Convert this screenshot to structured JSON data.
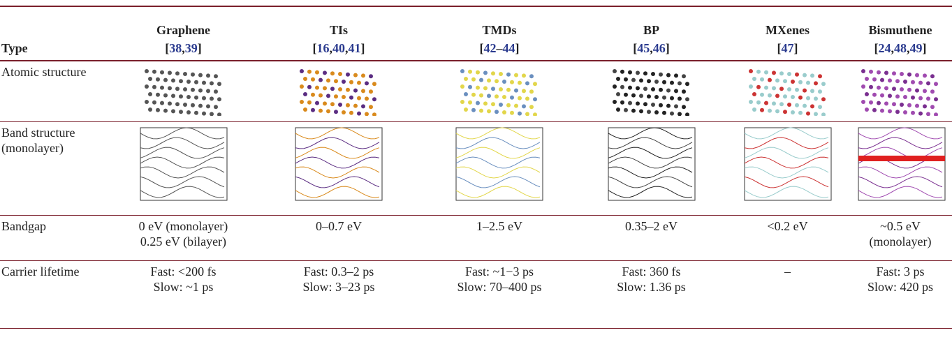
{
  "table": {
    "header": {
      "label": "Type",
      "columns": [
        {
          "name": "Graphene",
          "refs": "[38,39]"
        },
        {
          "name": "TIs",
          "refs": "[16,40,41]"
        },
        {
          "name": "TMDs",
          "refs": "[42–44]"
        },
        {
          "name": "BP",
          "refs": "[45,46]"
        },
        {
          "name": "MXenes",
          "refs": "[47]"
        },
        {
          "name": "Bismuthene",
          "refs": "[24,48,49]"
        }
      ]
    },
    "rows": [
      {
        "label": "Atomic structure"
      },
      {
        "label": "Band structure (monolayer)"
      },
      {
        "label": "Bandgap",
        "cells": [
          [
            "0 eV (monolayer)",
            "0.25 eV (bilayer)"
          ],
          [
            "0–0.7 eV"
          ],
          [
            "1–2.5 eV"
          ],
          [
            "0.35–2 eV"
          ],
          [
            "<0.2 eV"
          ],
          [
            "~0.5 eV (monolayer)"
          ]
        ]
      },
      {
        "label": "Carrier lifetime",
        "cells": [
          [
            "Fast: <200 fs",
            "Slow: ~1 ps"
          ],
          [
            "Fast: 0.3–2 ps",
            "Slow: 3–23 ps"
          ],
          [
            "Fast: ~1−3 ps",
            "Slow: 70–400 ps"
          ],
          [
            "Fast: 360 fs",
            "Slow: 1.36 ps"
          ],
          [
            "–"
          ],
          [
            "Fast: 3 ps",
            "Slow: 420 ps"
          ]
        ]
      }
    ]
  }
}
